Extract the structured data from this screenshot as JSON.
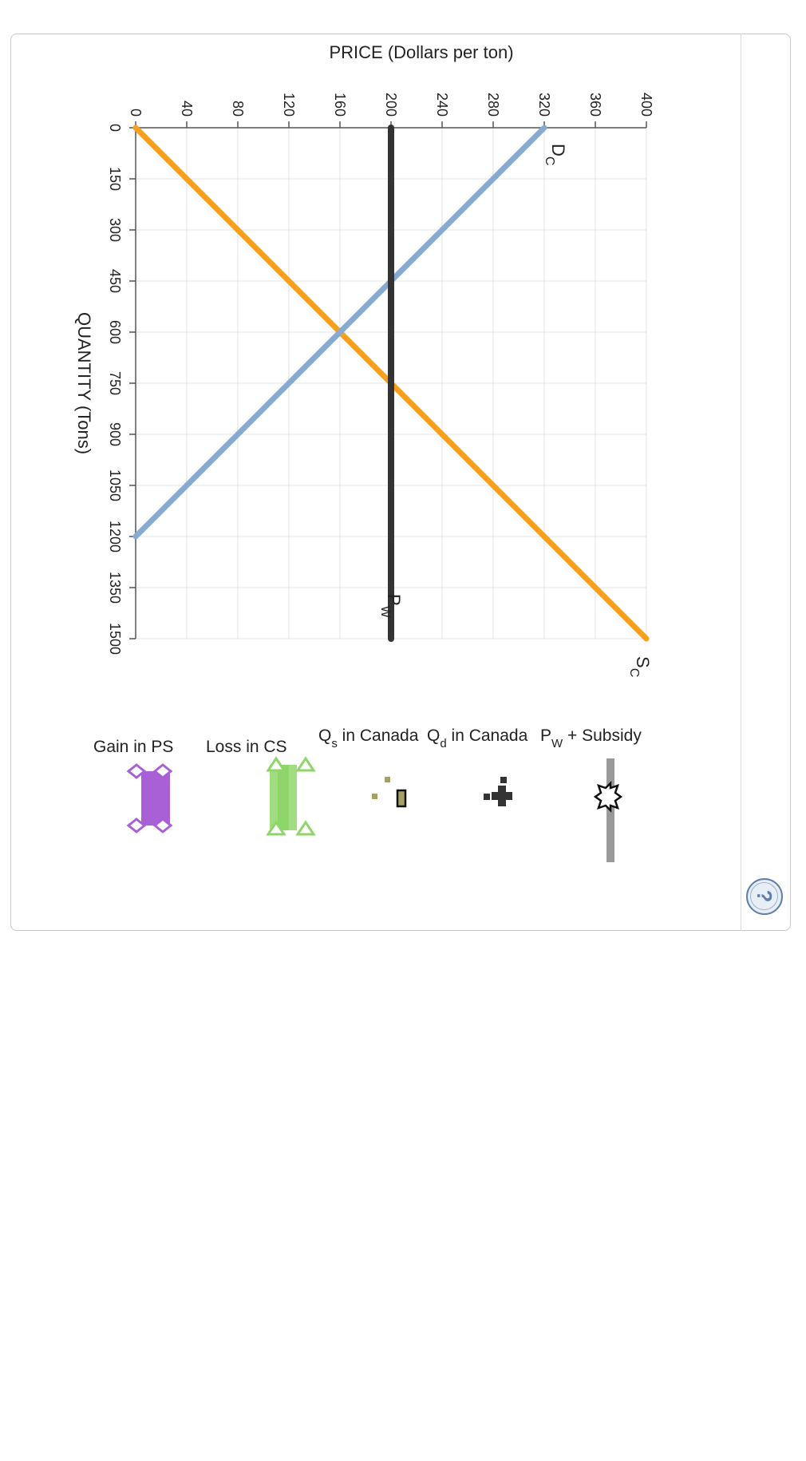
{
  "chart_data": {
    "type": "line",
    "xlabel": "QUANTITY (Tons)",
    "ylabel": "PRICE (Dollars per ton)",
    "xlim": [
      0,
      1500
    ],
    "ylim": [
      0,
      400
    ],
    "x_ticks": [
      0,
      150,
      300,
      450,
      600,
      750,
      900,
      1050,
      1200,
      1350,
      1500
    ],
    "y_ticks": [
      0,
      40,
      80,
      120,
      160,
      200,
      240,
      280,
      320,
      360,
      400
    ],
    "grid": true,
    "orientation": "rotated 90 degrees clockwise",
    "series": [
      {
        "name": "S",
        "subscript": "C",
        "color": "#f5a01e",
        "points": [
          [
            0,
            0
          ],
          [
            1500,
            400
          ]
        ]
      },
      {
        "name": "D",
        "subscript": "C",
        "color": "#86abd2",
        "points": [
          [
            0,
            320
          ],
          [
            1200,
            0
          ]
        ]
      },
      {
        "name": "P",
        "subscript": "W",
        "color": "#333333",
        "points": [
          [
            0,
            200
          ],
          [
            1500,
            200
          ]
        ]
      }
    ]
  },
  "legend": {
    "items": [
      {
        "icon": "star-marker-icon",
        "text": "",
        "color": "#9a9a9a"
      },
      {
        "icon": "cross-marker-icon",
        "text_main": "P",
        "text_sub": "W",
        "text_rest": " + Subsidy",
        "color": "#333333"
      },
      {
        "icon": "square-marker-icon",
        "text_main": "Q",
        "text_sub": "d",
        "text_rest": " in Canada",
        "color": "#a6a062"
      },
      {
        "icon": "green-triangle-area-icon",
        "text_main": "Q",
        "text_sub": "s",
        "text_rest": " in Canada",
        "color": "#8fd66a"
      },
      {
        "icon": "purple-diamond-area-icon",
        "text": "Loss in CS",
        "color": "#a95fd6"
      },
      {
        "icon": "",
        "text": "Gain in PS",
        "color": ""
      }
    ]
  },
  "help": {
    "label": "?"
  }
}
